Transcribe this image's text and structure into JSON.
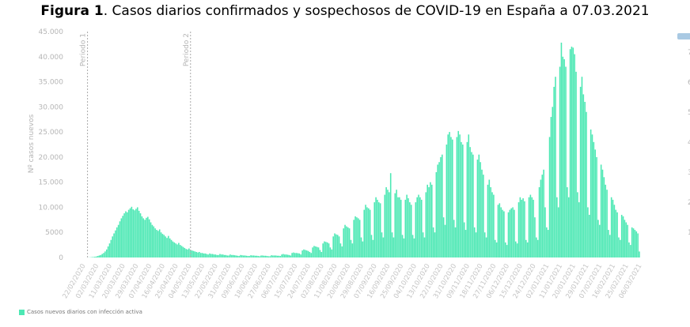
{
  "title": {
    "bold": "Figura 1",
    "rest": ". Casos diarios confirmados y sospechosos de COVID-19 en España a 07.03.2021"
  },
  "colors": {
    "bar": "#4de8b4",
    "period_line": "#aaaaaa",
    "secondary_legend": "#a9c9e3"
  },
  "secondary_axis_partial": [
    "7",
    "6",
    "5",
    "4",
    "3",
    "2",
    "1"
  ],
  "chart_data": {
    "type": "bar",
    "title": "Casos diarios confirmados y sospechosos de COVID-19 en España a 07.03.2021",
    "xlabel": "",
    "ylabel": "Nº casos nuevos",
    "ylim": [
      0,
      45000
    ],
    "yticks": [
      0,
      5000,
      10000,
      15000,
      20000,
      25000,
      30000,
      35000,
      40000,
      45000
    ],
    "ytick_labels": [
      "0",
      "5000",
      "10.000",
      "15.000",
      "20.000",
      "25.000",
      "30.000",
      "35.000",
      "40.000",
      "45.000"
    ],
    "start_date": "22/02/2020",
    "end_date": "06/03/2021",
    "xtick_every_days": 9,
    "xtick_labels": [
      "22/02/2020",
      "02/03/2020",
      "11/03/2020",
      "20/03/2020",
      "29/03/2020",
      "07/04/2020",
      "16/04/2020",
      "25/04/2020",
      "04/05/2020",
      "13/05/2020",
      "22/05/2020",
      "31/05/2020",
      "09/06/2020",
      "18/06/2020",
      "27/06/2020",
      "06/07/2020",
      "15/07/2020",
      "24/07/2020",
      "02/08/2020",
      "11/08/2020",
      "20/08/2020",
      "29/08/2020",
      "07/09/2020",
      "16/09/2020",
      "25/09/2020",
      "04/10/2020",
      "13/10/2020",
      "22/10/2020",
      "31/10/2020",
      "09/11/2020",
      "18/11/2020",
      "27/11/2020",
      "06/12/2020",
      "15/12/2020",
      "24/12/2020",
      "02/01/2021",
      "11/01/2021",
      "20/01/2021",
      "29/01/2021",
      "07/02/2021",
      "16/02/2021",
      "25/02/2021",
      "06/03/2021"
    ],
    "annotations": [
      {
        "label": "Periodo 1",
        "day_index": 3
      },
      {
        "label": "Periodo 2",
        "day_index": 73
      }
    ],
    "legend": {
      "label": "Casos nuevos diarios con infección activa",
      "placement": "bottom-left"
    },
    "series": [
      {
        "name": "Casos nuevos diarios con infección activa",
        "values": [
          0,
          0,
          0,
          10,
          20,
          40,
          80,
          100,
          150,
          200,
          300,
          400,
          500,
          700,
          900,
          1200,
          1600,
          2200,
          2800,
          3500,
          4200,
          4800,
          5400,
          6000,
          6500,
          7200,
          7800,
          8300,
          8800,
          9200,
          9000,
          9500,
          9800,
          10100,
          9600,
          9400,
          9700,
          10000,
          9300,
          8800,
          8200,
          7800,
          7500,
          7900,
          8100,
          7600,
          7000,
          6500,
          6200,
          5800,
          5500,
          5300,
          5600,
          5000,
          4700,
          4500,
          4200,
          3900,
          4300,
          3800,
          3500,
          3200,
          3000,
          2800,
          2600,
          2900,
          2500,
          2300,
          2100,
          1900,
          1700,
          1600,
          1800,
          1500,
          1400,
          1300,
          1200,
          1100,
          1000,
          1100,
          900,
          900,
          800,
          800,
          700,
          600,
          800,
          700,
          700,
          600,
          600,
          500,
          500,
          700,
          600,
          600,
          500,
          500,
          400,
          400,
          600,
          500,
          500,
          450,
          400,
          350,
          300,
          500,
          450,
          400,
          400,
          350,
          300,
          300,
          450,
          400,
          400,
          350,
          350,
          300,
          250,
          400,
          400,
          350,
          350,
          300,
          250,
          250,
          450,
          400,
          400,
          400,
          350,
          350,
          300,
          600,
          700,
          600,
          600,
          550,
          500,
          400,
          900,
          1000,
          900,
          900,
          850,
          800,
          600,
          1400,
          1600,
          1500,
          1400,
          1300,
          1100,
          900,
          2000,
          2300,
          2200,
          2100,
          2000,
          1500,
          1100,
          2800,
          3200,
          3100,
          3000,
          2800,
          2000,
          1600,
          4200,
          4800,
          4600,
          4500,
          4200,
          2800,
          2200,
          5800,
          6500,
          6200,
          6000,
          5800,
          3500,
          2800,
          7500,
          8200,
          8000,
          7800,
          7500,
          4000,
          3200,
          9500,
          10500,
          10000,
          9800,
          9500,
          4500,
          3500,
          11000,
          12000,
          11500,
          11000,
          10800,
          5000,
          4000,
          12500,
          14000,
          13500,
          13000,
          16800,
          5000,
          4000,
          12800,
          13500,
          12000,
          12000,
          11500,
          4500,
          3800,
          11500,
          12500,
          11800,
          11000,
          10500,
          4500,
          3800,
          11000,
          12000,
          12500,
          12000,
          11500,
          5000,
          4000,
          13000,
          14500,
          14000,
          15000,
          14500,
          6000,
          5000,
          17000,
          18500,
          19000,
          20000,
          20500,
          8000,
          6500,
          22500,
          24500,
          25000,
          24000,
          23500,
          7500,
          6000,
          24000,
          25200,
          24500,
          23000,
          22500,
          7000,
          5500,
          23000,
          24500,
          22000,
          21000,
          20500,
          6000,
          5000,
          19500,
          20500,
          19000,
          17500,
          16500,
          5000,
          4000,
          14500,
          15500,
          14000,
          13000,
          12500,
          3500,
          3000,
          10500,
          10800,
          10000,
          9500,
          9200,
          3000,
          2500,
          9000,
          9500,
          9800,
          10000,
          9500,
          3200,
          2800,
          11000,
          12000,
          11500,
          11800,
          11200,
          3500,
          3000,
          12000,
          12500,
          12000,
          11500,
          8000,
          4000,
          3500,
          14000,
          15500,
          16500,
          17500,
          10000,
          6000,
          5500,
          24000,
          28000,
          30000,
          34000,
          36000,
          12000,
          10000,
          38000,
          42800,
          40000,
          39500,
          38000,
          14000,
          12000,
          41500,
          42000,
          41800,
          40500,
          37000,
          13000,
          11000,
          34000,
          36000,
          32500,
          31000,
          29000,
          10000,
          8500,
          25500,
          24500,
          23000,
          21500,
          20000,
          7500,
          6500,
          18500,
          17500,
          16000,
          14500,
          13500,
          5500,
          4500,
          12000,
          11500,
          10500,
          9500,
          9000,
          4000,
          3500,
          8500,
          8200,
          7500,
          7000,
          6500,
          3000,
          2500,
          6000,
          5800,
          5500,
          5200,
          4800,
          1200
        ]
      }
    ]
  }
}
